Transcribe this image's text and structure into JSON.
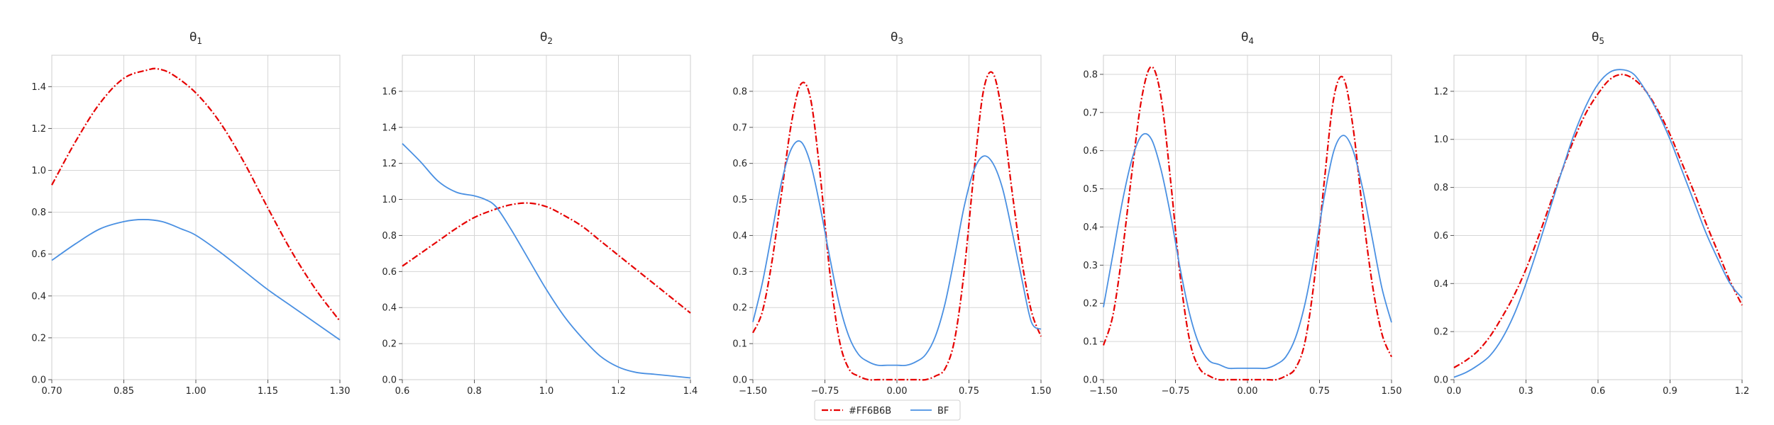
{
  "colors": {
    "series_red": "#e60000",
    "series_blue": "#4a90e2",
    "grid": "#d6d6d6",
    "frame": "#cfcfcf"
  },
  "legend": {
    "items": [
      {
        "label": "#FF6B6B",
        "style": "dashdot",
        "color": "#e60000"
      },
      {
        "label": "BF",
        "style": "solid",
        "color": "#4a90e2"
      }
    ],
    "placement": "bottom-center"
  },
  "chart_data": [
    {
      "type": "line",
      "title": {
        "base": "θ",
        "sub": "1"
      },
      "xlim": [
        0.7,
        1.3
      ],
      "ylim": [
        0,
        1.55
      ],
      "xticks": [
        0.7,
        0.85,
        1.0,
        1.15,
        1.3
      ],
      "xtick_labels": [
        "0.70",
        "0.85",
        "1.00",
        "1.15",
        "1.30"
      ],
      "yticks": [
        0,
        0.2,
        0.4,
        0.6,
        0.8,
        1.0,
        1.2,
        1.4
      ],
      "ytick_labels": [
        "0.0",
        "0.2",
        "0.4",
        "0.6",
        "0.8",
        "1.0",
        "1.2",
        "1.4"
      ],
      "grid": true,
      "series": [
        {
          "name": "#FF6B6B",
          "style": "dashdot",
          "x": [
            0.7,
            0.75,
            0.8,
            0.85,
            0.9,
            0.92,
            0.95,
            1.0,
            1.05,
            1.1,
            1.15,
            1.2,
            1.25,
            1.3
          ],
          "y": [
            0.93,
            1.14,
            1.32,
            1.44,
            1.48,
            1.485,
            1.46,
            1.37,
            1.23,
            1.04,
            0.82,
            0.61,
            0.43,
            0.28
          ]
        },
        {
          "name": "BF",
          "style": "solid",
          "x": [
            0.7,
            0.75,
            0.8,
            0.85,
            0.89,
            0.93,
            0.97,
            1.0,
            1.05,
            1.1,
            1.15,
            1.2,
            1.25,
            1.3
          ],
          "y": [
            0.57,
            0.65,
            0.72,
            0.755,
            0.765,
            0.755,
            0.72,
            0.69,
            0.61,
            0.52,
            0.43,
            0.35,
            0.27,
            0.19
          ]
        }
      ]
    },
    {
      "type": "line",
      "title": {
        "base": "θ",
        "sub": "2"
      },
      "xlim": [
        0.6,
        1.4
      ],
      "ylim": [
        0,
        1.8
      ],
      "xticks": [
        0.6,
        0.8,
        1.0,
        1.2,
        1.4
      ],
      "xtick_labels": [
        "0.6",
        "0.8",
        "1.0",
        "1.2",
        "1.4"
      ],
      "yticks": [
        0,
        0.2,
        0.4,
        0.6,
        0.8,
        1.0,
        1.2,
        1.4,
        1.6
      ],
      "ytick_labels": [
        "0.0",
        "0.2",
        "0.4",
        "0.6",
        "0.8",
        "1.0",
        "1.2",
        "1.4",
        "1.6"
      ],
      "grid": true,
      "series": [
        {
          "name": "#FF6B6B",
          "style": "dashdot",
          "x": [
            0.6,
            0.65,
            0.7,
            0.75,
            0.8,
            0.85,
            0.9,
            0.95,
            1.0,
            1.05,
            1.1,
            1.15,
            1.2,
            1.25,
            1.3,
            1.35,
            1.4
          ],
          "y": [
            0.63,
            0.7,
            0.77,
            0.84,
            0.9,
            0.94,
            0.97,
            0.98,
            0.96,
            0.91,
            0.85,
            0.77,
            0.69,
            0.61,
            0.53,
            0.45,
            0.37
          ]
        },
        {
          "name": "BF",
          "style": "solid",
          "x": [
            0.6,
            0.65,
            0.7,
            0.75,
            0.8,
            0.83,
            0.86,
            0.9,
            0.95,
            1.0,
            1.05,
            1.1,
            1.15,
            1.2,
            1.25,
            1.3,
            1.35,
            1.4
          ],
          "y": [
            1.31,
            1.21,
            1.1,
            1.04,
            1.02,
            1.0,
            0.96,
            0.84,
            0.67,
            0.5,
            0.35,
            0.23,
            0.13,
            0.07,
            0.04,
            0.03,
            0.02,
            0.01
          ]
        }
      ]
    },
    {
      "type": "line",
      "title": {
        "base": "θ",
        "sub": "3"
      },
      "xlim": [
        -1.5,
        1.5
      ],
      "ylim": [
        0,
        0.9
      ],
      "xticks": [
        -1.5,
        -0.75,
        0,
        0.75,
        1.5
      ],
      "xtick_labels": [
        "−1.50",
        "−0.75",
        "0.00",
        "0.75",
        "1.50"
      ],
      "yticks": [
        0,
        0.1,
        0.2,
        0.3,
        0.4,
        0.5,
        0.6,
        0.7,
        0.8
      ],
      "ytick_labels": [
        "0.0",
        "0.1",
        "0.2",
        "0.3",
        "0.4",
        "0.5",
        "0.6",
        "0.7",
        "0.8"
      ],
      "grid": true,
      "series": [
        {
          "name": "#FF6B6B",
          "style": "dashdot",
          "x": [
            -1.5,
            -1.4,
            -1.3,
            -1.2,
            -1.1,
            -1.0,
            -0.9,
            -0.8,
            -0.7,
            -0.6,
            -0.5,
            -0.4,
            -0.3,
            -0.2,
            0,
            0.2,
            0.3,
            0.4,
            0.5,
            0.6,
            0.7,
            0.8,
            0.9,
            1.0,
            1.1,
            1.2,
            1.3,
            1.4,
            1.5
          ],
          "y": [
            0.13,
            0.19,
            0.33,
            0.52,
            0.71,
            0.82,
            0.78,
            0.57,
            0.3,
            0.11,
            0.03,
            0.01,
            0.0,
            0.0,
            0.0,
            0.0,
            0.0,
            0.01,
            0.03,
            0.11,
            0.3,
            0.57,
            0.8,
            0.85,
            0.73,
            0.52,
            0.33,
            0.19,
            0.12
          ]
        },
        {
          "name": "BF",
          "style": "solid",
          "x": [
            -1.5,
            -1.4,
            -1.3,
            -1.2,
            -1.1,
            -1.0,
            -0.9,
            -0.8,
            -0.7,
            -0.6,
            -0.5,
            -0.4,
            -0.3,
            -0.2,
            -0.1,
            0,
            0.1,
            0.2,
            0.3,
            0.4,
            0.5,
            0.6,
            0.7,
            0.8,
            0.9,
            1.0,
            1.1,
            1.2,
            1.3,
            1.4,
            1.5
          ],
          "y": [
            0.16,
            0.27,
            0.41,
            0.55,
            0.64,
            0.66,
            0.6,
            0.48,
            0.34,
            0.21,
            0.12,
            0.07,
            0.05,
            0.04,
            0.04,
            0.04,
            0.04,
            0.05,
            0.07,
            0.12,
            0.21,
            0.34,
            0.48,
            0.58,
            0.62,
            0.6,
            0.53,
            0.41,
            0.28,
            0.16,
            0.14
          ]
        }
      ]
    },
    {
      "type": "line",
      "title": {
        "base": "θ",
        "sub": "4"
      },
      "xlim": [
        -1.5,
        1.5
      ],
      "ylim": [
        0,
        0.85
      ],
      "xticks": [
        -1.5,
        -0.75,
        0,
        0.75,
        1.5
      ],
      "xtick_labels": [
        "−1.50",
        "−0.75",
        "0.00",
        "0.75",
        "1.50"
      ],
      "yticks": [
        0,
        0.1,
        0.2,
        0.3,
        0.4,
        0.5,
        0.6,
        0.7,
        0.8
      ],
      "ytick_labels": [
        "0.0",
        "0.1",
        "0.2",
        "0.3",
        "0.4",
        "0.5",
        "0.6",
        "0.7",
        "0.8"
      ],
      "grid": true,
      "series": [
        {
          "name": "#FF6B6B",
          "style": "dashdot",
          "x": [
            -1.5,
            -1.4,
            -1.3,
            -1.2,
            -1.1,
            -1.0,
            -0.9,
            -0.8,
            -0.7,
            -0.6,
            -0.5,
            -0.4,
            -0.3,
            -0.2,
            0,
            0.2,
            0.3,
            0.4,
            0.5,
            0.6,
            0.7,
            0.8,
            0.9,
            1.0,
            1.1,
            1.2,
            1.3,
            1.4,
            1.5
          ],
          "y": [
            0.09,
            0.17,
            0.34,
            0.55,
            0.74,
            0.82,
            0.74,
            0.52,
            0.27,
            0.1,
            0.03,
            0.01,
            0.0,
            0.0,
            0.0,
            0.0,
            0.0,
            0.01,
            0.03,
            0.1,
            0.27,
            0.52,
            0.74,
            0.79,
            0.66,
            0.44,
            0.25,
            0.12,
            0.06
          ]
        },
        {
          "name": "BF",
          "style": "solid",
          "x": [
            -1.5,
            -1.4,
            -1.3,
            -1.2,
            -1.1,
            -1.0,
            -0.9,
            -0.8,
            -0.7,
            -0.6,
            -0.5,
            -0.4,
            -0.3,
            -0.2,
            -0.1,
            0,
            0.1,
            0.2,
            0.3,
            0.4,
            0.5,
            0.6,
            0.7,
            0.8,
            0.9,
            1.0,
            1.1,
            1.2,
            1.3,
            1.4,
            1.5
          ],
          "y": [
            0.19,
            0.33,
            0.47,
            0.58,
            0.64,
            0.63,
            0.55,
            0.43,
            0.29,
            0.17,
            0.09,
            0.05,
            0.04,
            0.03,
            0.03,
            0.03,
            0.03,
            0.03,
            0.04,
            0.06,
            0.11,
            0.2,
            0.33,
            0.48,
            0.6,
            0.64,
            0.6,
            0.5,
            0.37,
            0.24,
            0.15
          ]
        }
      ]
    },
    {
      "type": "line",
      "title": {
        "base": "θ",
        "sub": "5"
      },
      "xlim": [
        0,
        1.2
      ],
      "ylim": [
        0,
        1.35
      ],
      "xticks": [
        0,
        0.3,
        0.6,
        0.9,
        1.2
      ],
      "xtick_labels": [
        "0.0",
        "0.3",
        "0.6",
        "0.9",
        "1.2"
      ],
      "yticks": [
        0,
        0.2,
        0.4,
        0.6,
        0.8,
        1.0,
        1.2
      ],
      "ytick_labels": [
        "0.0",
        "0.2",
        "0.4",
        "0.6",
        "0.8",
        "1.0",
        "1.2"
      ],
      "grid": true,
      "series": [
        {
          "name": "#FF6B6B",
          "style": "dashdot",
          "x": [
            0,
            0.05,
            0.1,
            0.15,
            0.2,
            0.25,
            0.3,
            0.35,
            0.4,
            0.45,
            0.5,
            0.55,
            0.6,
            0.65,
            0.7,
            0.75,
            0.8,
            0.85,
            0.9,
            0.95,
            1.0,
            1.05,
            1.1,
            1.15,
            1.2
          ],
          "y": [
            0.05,
            0.08,
            0.12,
            0.18,
            0.26,
            0.35,
            0.46,
            0.59,
            0.73,
            0.87,
            1.0,
            1.11,
            1.19,
            1.25,
            1.27,
            1.25,
            1.2,
            1.12,
            1.02,
            0.9,
            0.78,
            0.65,
            0.53,
            0.41,
            0.31
          ]
        },
        {
          "name": "BF",
          "style": "solid",
          "x": [
            0,
            0.05,
            0.1,
            0.15,
            0.2,
            0.25,
            0.3,
            0.35,
            0.4,
            0.45,
            0.5,
            0.55,
            0.6,
            0.65,
            0.7,
            0.75,
            0.8,
            0.85,
            0.9,
            0.95,
            1.0,
            1.05,
            1.1,
            1.15,
            1.2
          ],
          "y": [
            0.01,
            0.03,
            0.06,
            0.1,
            0.17,
            0.27,
            0.4,
            0.55,
            0.71,
            0.87,
            1.02,
            1.14,
            1.23,
            1.28,
            1.29,
            1.27,
            1.2,
            1.11,
            1.0,
            0.87,
            0.74,
            0.61,
            0.5,
            0.4,
            0.34
          ]
        }
      ]
    }
  ]
}
